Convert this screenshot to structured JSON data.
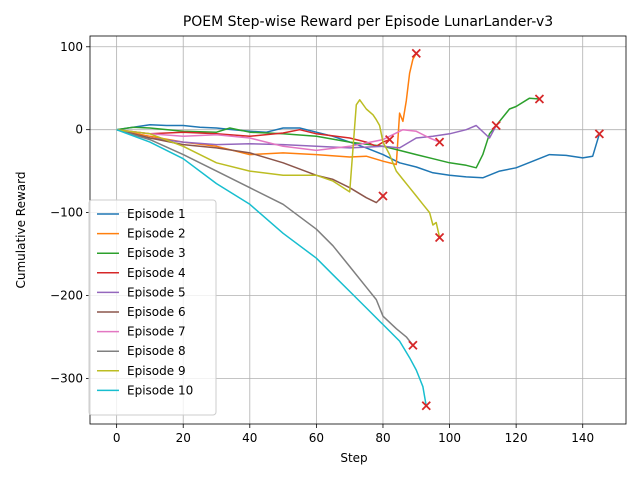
{
  "chart_data": {
    "type": "line",
    "title": "POEM Step-wise Reward per Episode LunarLander-v3",
    "xlabel": "Step",
    "ylabel": "Cumulative Reward",
    "xlim": [
      -8,
      153
    ],
    "ylim": [
      -355,
      113
    ],
    "xticks": [
      0,
      20,
      40,
      60,
      80,
      100,
      120,
      140
    ],
    "yticks": [
      100,
      0,
      -100,
      -200,
      -300
    ],
    "ytick_labels": [
      "100",
      "0",
      "−100",
      "−200",
      "−300"
    ],
    "grid": true,
    "legend_position": "lower-left",
    "end_marker": "x",
    "end_marker_color": "#d62728",
    "series": [
      {
        "name": "Episode 1",
        "color": "#1f77b4",
        "x": [
          0,
          5,
          10,
          15,
          20,
          25,
          30,
          35,
          40,
          45,
          50,
          55,
          60,
          65,
          70,
          75,
          80,
          85,
          90,
          95,
          100,
          105,
          110,
          115,
          120,
          125,
          130,
          135,
          140,
          143,
          145
        ],
        "y": [
          0,
          3,
          6,
          5,
          5,
          3,
          2,
          0,
          -2,
          -3,
          2,
          2,
          -3,
          -8,
          -15,
          -22,
          -30,
          -40,
          -45,
          -52,
          -55,
          -57,
          -58,
          -50,
          -46,
          -38,
          -30,
          -31,
          -34,
          -32,
          -5
        ]
      },
      {
        "name": "Episode 2",
        "color": "#ff7f0e",
        "x": [
          0,
          10,
          20,
          30,
          40,
          50,
          60,
          70,
          75,
          80,
          84,
          85,
          86,
          87,
          88,
          89,
          90
        ],
        "y": [
          0,
          -8,
          -15,
          -20,
          -30,
          -28,
          -30,
          -33,
          -32,
          -38,
          -42,
          20,
          10,
          35,
          68,
          85,
          92
        ]
      },
      {
        "name": "Episode 3",
        "color": "#2ca02c",
        "x": [
          0,
          5,
          10,
          20,
          30,
          34,
          40,
          50,
          60,
          70,
          80,
          85,
          90,
          95,
          100,
          105,
          108,
          110,
          112,
          115,
          118,
          120,
          124,
          127
        ],
        "y": [
          0,
          3,
          2,
          -2,
          -3,
          2,
          -3,
          -5,
          -8,
          -15,
          -20,
          -25,
          -30,
          -35,
          -40,
          -43,
          -46,
          -30,
          -5,
          10,
          25,
          28,
          38,
          37
        ]
      },
      {
        "name": "Episode 4",
        "color": "#d62728",
        "x": [
          0,
          10,
          20,
          30,
          40,
          50,
          55,
          60,
          70,
          75,
          78,
          80,
          82
        ],
        "y": [
          0,
          -5,
          -3,
          -5,
          -8,
          -4,
          0,
          -5,
          -10,
          -15,
          -20,
          -15,
          -12
        ]
      },
      {
        "name": "Episode 5",
        "color": "#9467bd",
        "x": [
          0,
          10,
          20,
          30,
          40,
          50,
          60,
          70,
          80,
          85,
          90,
          95,
          100,
          105,
          108,
          112,
          114
        ],
        "y": [
          0,
          -10,
          -15,
          -18,
          -17,
          -18,
          -20,
          -22,
          -20,
          -22,
          -10,
          -8,
          -5,
          0,
          5,
          -10,
          5
        ]
      },
      {
        "name": "Episode 6",
        "color": "#8c564b",
        "x": [
          0,
          10,
          20,
          30,
          40,
          50,
          60,
          65,
          70,
          75,
          78,
          80
        ],
        "y": [
          0,
          -10,
          -18,
          -22,
          -28,
          -40,
          -55,
          -60,
          -70,
          -82,
          -88,
          -80
        ]
      },
      {
        "name": "Episode 7",
        "color": "#e377c2",
        "x": [
          0,
          10,
          20,
          30,
          40,
          50,
          60,
          70,
          80,
          86,
          90,
          94,
          97
        ],
        "y": [
          0,
          -5,
          -8,
          -6,
          -10,
          -20,
          -25,
          -20,
          -12,
          0,
          -2,
          -10,
          -15
        ]
      },
      {
        "name": "Episode 8",
        "color": "#7f7f7f",
        "x": [
          0,
          10,
          20,
          30,
          40,
          50,
          60,
          65,
          70,
          75,
          78,
          80,
          84,
          87,
          89
        ],
        "y": [
          0,
          -12,
          -30,
          -50,
          -70,
          -90,
          -120,
          -140,
          -165,
          -190,
          -205,
          -225,
          -240,
          -250,
          -260
        ]
      },
      {
        "name": "Episode 9",
        "color": "#bcbd22",
        "x": [
          0,
          10,
          20,
          30,
          40,
          50,
          60,
          65,
          70,
          72,
          73,
          75,
          77,
          78,
          79,
          80,
          82,
          84,
          86,
          88,
          90,
          92,
          94,
          95,
          96,
          97
        ],
        "y": [
          0,
          -5,
          -20,
          -40,
          -50,
          -55,
          -55,
          -62,
          -75,
          30,
          36,
          25,
          18,
          12,
          5,
          -15,
          -30,
          -50,
          -60,
          -70,
          -80,
          -90,
          -100,
          -115,
          -112,
          -130
        ]
      },
      {
        "name": "Episode 10",
        "color": "#17becf",
        "x": [
          0,
          10,
          20,
          30,
          40,
          50,
          60,
          65,
          70,
          75,
          80,
          85,
          88,
          90,
          91,
          92,
          93
        ],
        "y": [
          0,
          -15,
          -35,
          -65,
          -90,
          -125,
          -155,
          -175,
          -195,
          -215,
          -235,
          -255,
          -275,
          -290,
          -300,
          -310,
          -333
        ]
      }
    ]
  }
}
